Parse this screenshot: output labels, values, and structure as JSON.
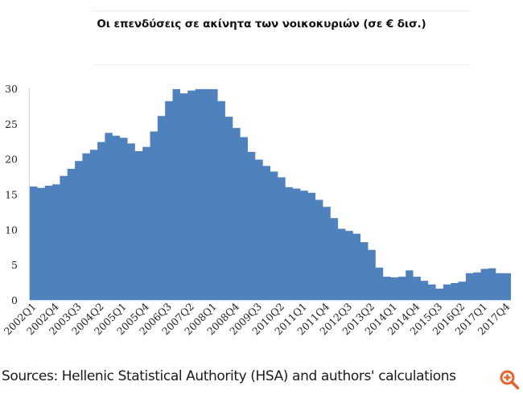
{
  "header": {
    "title": "Οι επενδύσεις σε ακίνητα των νοικοκυριών (σε € δισ.)"
  },
  "footer": {
    "source": "Sources: Hellenic Statistical Authority (HSA) and authors' calculations",
    "zoom_icon": "zoom-in-icon",
    "zoom_icon_color": "#e8622c"
  },
  "chart_data": {
    "type": "area",
    "title": "Οι επενδύσεις σε ακίνητα των νοικοκυριών (σε € δισ.)",
    "xlabel": "",
    "ylabel": "",
    "ylim": [
      0,
      30
    ],
    "yticks": [
      0,
      5,
      10,
      15,
      20,
      25,
      30
    ],
    "grid": false,
    "legend": null,
    "color": "#4f81bd",
    "step": true,
    "categories": [
      "2002Q1",
      "2002Q2",
      "2002Q3",
      "2002Q4",
      "2003Q1",
      "2003Q2",
      "2003Q3",
      "2003Q4",
      "2004Q1",
      "2004Q2",
      "2004Q3",
      "2004Q4",
      "2005Q1",
      "2005Q2",
      "2005Q3",
      "2005Q4",
      "2006Q1",
      "2006Q2",
      "2006Q3",
      "2006Q4",
      "2007Q1",
      "2007Q2",
      "2007Q3",
      "2007Q4",
      "2008Q1",
      "2008Q2",
      "2008Q3",
      "2008Q4",
      "2009Q1",
      "2009Q2",
      "2009Q3",
      "2009Q4",
      "2010Q1",
      "2010Q2",
      "2010Q3",
      "2010Q4",
      "2011Q1",
      "2011Q2",
      "2011Q3",
      "2011Q4",
      "2012Q1",
      "2012Q2",
      "2012Q3",
      "2012Q4",
      "2013Q1",
      "2013Q2",
      "2013Q3",
      "2013Q4",
      "2014Q1",
      "2014Q2",
      "2014Q3",
      "2014Q4",
      "2015Q1",
      "2015Q2",
      "2015Q3",
      "2015Q4",
      "2016Q1",
      "2016Q2",
      "2016Q3",
      "2016Q4",
      "2017Q1",
      "2017Q2",
      "2017Q3",
      "2017Q4"
    ],
    "tick_labels": [
      "2002Q1",
      "2002Q4",
      "2003Q3",
      "2004Q2",
      "2005Q1",
      "2005Q4",
      "2006Q3",
      "2007Q2",
      "2008Q1",
      "2008Q4",
      "2009Q3",
      "2010Q2",
      "2011Q1",
      "2011Q4",
      "2012Q3",
      "2013Q2",
      "2014Q1",
      "2014Q4",
      "2015Q3",
      "2016Q2",
      "2017Q1",
      "2017Q4"
    ],
    "values": [
      16.1,
      15.9,
      16.2,
      16.4,
      17.6,
      18.6,
      19.7,
      20.8,
      21.3,
      22.4,
      23.7,
      23.3,
      23.0,
      22.2,
      21.1,
      21.7,
      23.9,
      26.1,
      28.2,
      29.9,
      29.3,
      29.7,
      29.9,
      29.9,
      29.9,
      28.2,
      26.0,
      24.4,
      23.1,
      21.0,
      19.9,
      19.0,
      18.2,
      17.4,
      16.0,
      15.8,
      15.5,
      15.2,
      14.2,
      13.2,
      11.6,
      10.1,
      9.8,
      9.4,
      8.2,
      7.1,
      4.6,
      3.3,
      3.2,
      3.3,
      4.2,
      3.3,
      2.7,
      2.2,
      1.6,
      2.2,
      2.4,
      2.6,
      3.8,
      3.9,
      4.4,
      4.5,
      3.8,
      3.8
    ]
  }
}
